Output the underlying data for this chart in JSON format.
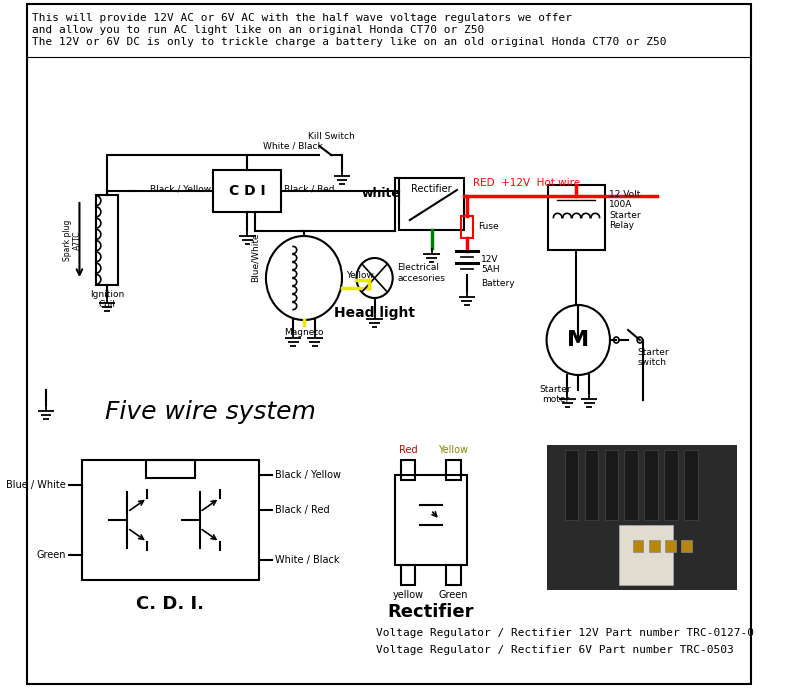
{
  "bg_color": "#ffffff",
  "title_text1": "This will provide 12V AC or 6V AC with the half wave voltage regulators we offer",
  "title_text2": "and allow you to run AC light like on an original Honda CT70 or Z50",
  "title_text3": "The 12V or 6V DC is only to trickle charge a battery like on an old original Honda CT70 or Z50",
  "five_wire_label": "Five wire system",
  "cdi_label": "C. D. I.",
  "rectifier_label": "Rectifier",
  "bottom_text1": "Voltage Regulator / Rectifier 12V Part number TRC-0127-0",
  "bottom_text2": "Voltage Regulator / Rectifier 6V Part number TRC-0503",
  "font_mono": "monospace"
}
